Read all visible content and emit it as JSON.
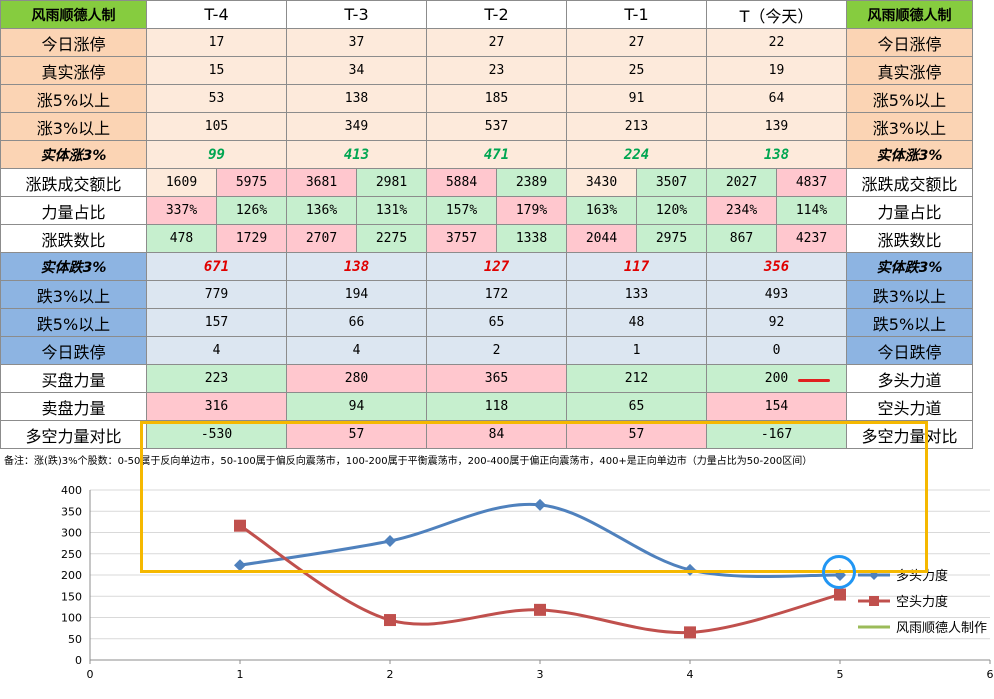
{
  "colors": {
    "brand_header": "#86cc3f",
    "label_orange": "#fbd4b4",
    "row_orange": "#fdeadb",
    "label_blue": "#8db4e2",
    "row_blue": "#dce6f1",
    "cell_green": "#c6efce",
    "cell_red": "#ffc7ce",
    "text_green": "#00a651",
    "text_red": "#e00000",
    "series_long": "#4f81bd",
    "series_short": "#c0504d",
    "series_brand": "#9bbb59"
  },
  "table": {
    "brand": "风雨顺德人制",
    "columns": [
      "T-4",
      "T-3",
      "T-2",
      "T-1",
      "T（今天）"
    ],
    "rows": [
      {
        "label": "今日涨停",
        "right": "今日涨停",
        "values": [
          "17",
          "37",
          "27",
          "27",
          "22"
        ]
      },
      {
        "label": "真实涨停",
        "right": "真实涨停",
        "values": [
          "15",
          "34",
          "23",
          "25",
          "19"
        ]
      },
      {
        "label": "涨5%以上",
        "right": "涨5%以上",
        "values": [
          "53",
          "138",
          "185",
          "91",
          "64"
        ]
      },
      {
        "label": "涨3%以上",
        "right": "涨3%以上",
        "values": [
          "105",
          "349",
          "537",
          "213",
          "139"
        ]
      },
      {
        "label": "实体涨3%",
        "right": "实体涨3%",
        "values": [
          "99",
          "413",
          "471",
          "224",
          "138"
        ]
      },
      {
        "label": "涨跌成交额比",
        "right": "涨跌成交额比",
        "pairs": [
          [
            "1609",
            "5975"
          ],
          [
            "3681",
            "2981"
          ],
          [
            "5884",
            "2389"
          ],
          [
            "3430",
            "3507"
          ],
          [
            "2027",
            "4837"
          ]
        ]
      },
      {
        "label": "力量占比",
        "right": "力量占比",
        "pairs": [
          [
            "337%",
            "126%"
          ],
          [
            "136%",
            "131%"
          ],
          [
            "157%",
            "179%"
          ],
          [
            "163%",
            "120%"
          ],
          [
            "234%",
            "114%"
          ]
        ]
      },
      {
        "label": "涨跌数比",
        "right": "涨跌数比",
        "pairs": [
          [
            "478",
            "1729"
          ],
          [
            "2707",
            "2275"
          ],
          [
            "3757",
            "1338"
          ],
          [
            "2044",
            "2975"
          ],
          [
            "867",
            "4237"
          ]
        ]
      },
      {
        "label": "实体跌3%",
        "right": "实体跌3%",
        "values": [
          "671",
          "138",
          "127",
          "117",
          "356"
        ]
      },
      {
        "label": "跌3%以上",
        "right": "跌3%以上",
        "values": [
          "779",
          "194",
          "172",
          "133",
          "493"
        ]
      },
      {
        "label": "跌5%以上",
        "right": "跌5%以上",
        "values": [
          "157",
          "66",
          "65",
          "48",
          "92"
        ]
      },
      {
        "label": "今日跌停",
        "right": "今日跌停",
        "values": [
          "4",
          "4",
          "2",
          "1",
          "0"
        ]
      },
      {
        "label": "买盘力量",
        "right": "多头力道",
        "values": [
          "223",
          "280",
          "365",
          "212",
          "200"
        ]
      },
      {
        "label": "卖盘力量",
        "right": "空头力道",
        "values": [
          "316",
          "94",
          "118",
          "65",
          "154"
        ]
      },
      {
        "label": "多空力量对比",
        "right": "多空力量对比",
        "values": [
          "-530",
          "57",
          "84",
          "57",
          "-167"
        ]
      }
    ]
  },
  "note": "备注：涨(跌)3%个股数：0-50属于反向单边市，50-100属于偏反向震荡市，100-200属于平衡震荡市，200-400属于偏正向震荡市，400+是正向单边市（力量占比为50-200区间）",
  "chart_data": {
    "type": "line",
    "x_ticks": [
      "0",
      "1",
      "2",
      "3",
      "4",
      "5",
      "6"
    ],
    "y_ticks": [
      "0",
      "50",
      "100",
      "150",
      "200",
      "250",
      "300",
      "350",
      "400"
    ],
    "xlim": [
      0,
      6
    ],
    "ylim": [
      0,
      400
    ],
    "grid": true,
    "legend_position": "right",
    "series": [
      {
        "name": "多头力度",
        "x": [
          1,
          2,
          3,
          4,
          5
        ],
        "values": [
          223,
          280,
          365,
          212,
          200
        ],
        "marker": "diamond"
      },
      {
        "name": "空头力度",
        "x": [
          1,
          2,
          3,
          4,
          5
        ],
        "values": [
          316,
          94,
          118,
          65,
          154
        ],
        "marker": "square"
      },
      {
        "name": "风雨顺德人制作",
        "x": [],
        "values": [],
        "marker": "none"
      }
    ]
  }
}
